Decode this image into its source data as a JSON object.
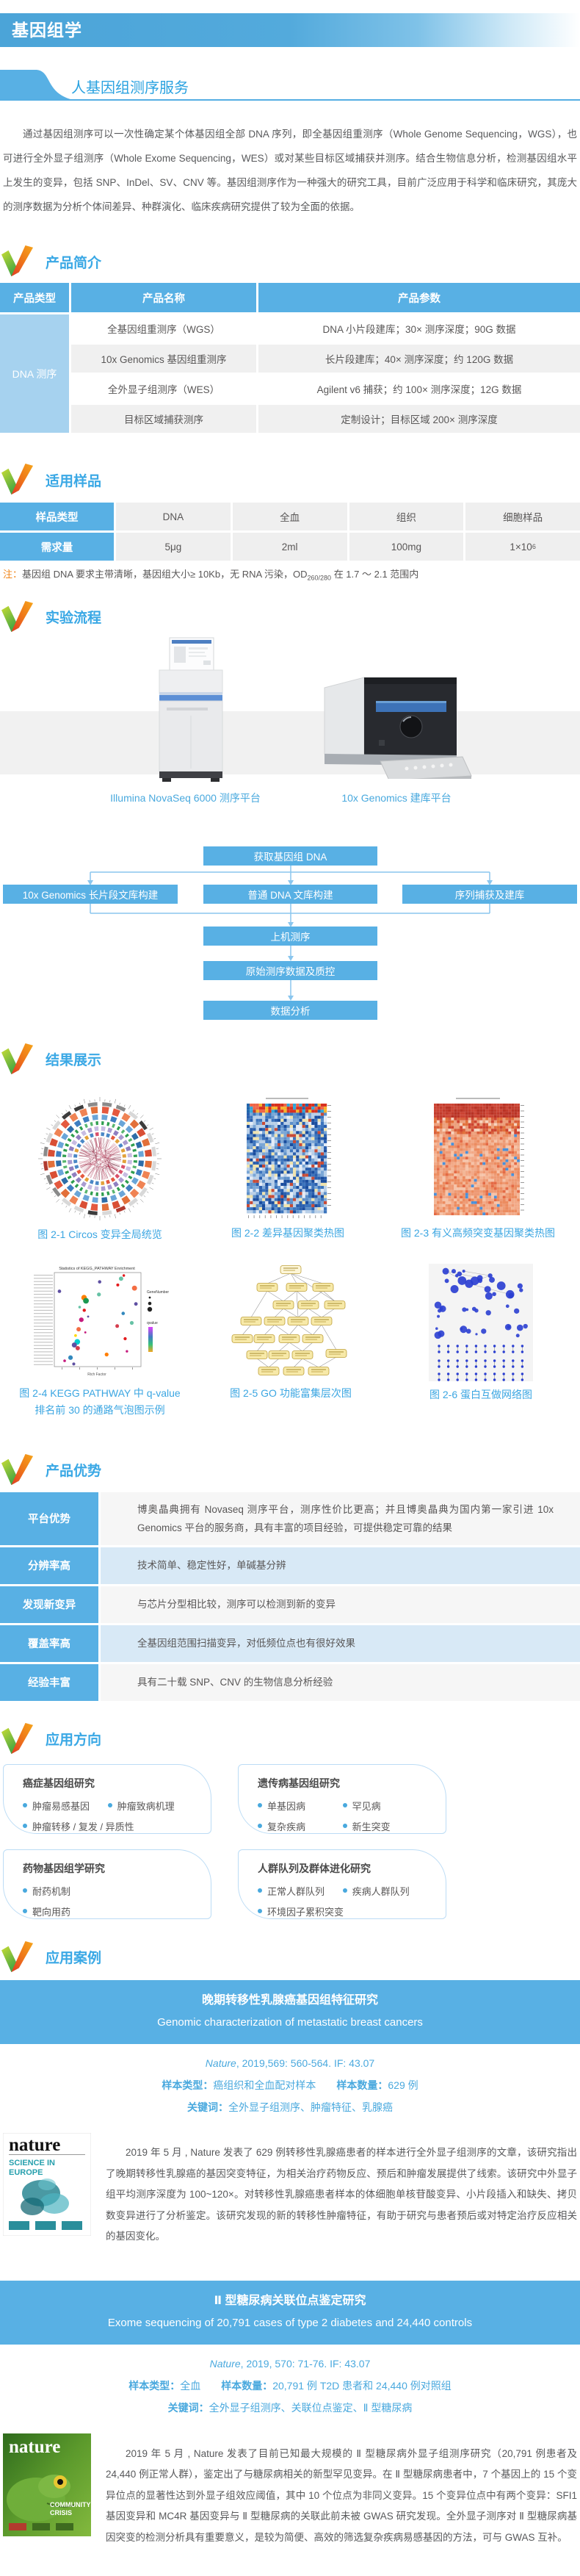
{
  "page": {
    "banner_title": "基因组学",
    "service_title": "人基因组测序服务",
    "intro": "通过基因组测序可以一次性确定某个体基因组全部 DNA 序列，即全基因组重测序（Whole Genome Sequencing，WGS），也可进行全外显子组测序（Whole Exome Sequencing，WES）或对某些目标区域捕获并测序。结合生物信息分析，检测基因组水平上发生的变异，包括 SNP、InDel、SV、CNV 等。基因组测序作为一种强大的研究工具，目前广泛应用于科学和临床研究，其庞大的测序数据为分析个体间差异、种群演化、临床疾病研究提供了较为全面的依据。"
  },
  "headings": {
    "product_intro": "产品简介",
    "samples": "适用样品",
    "workflow": "实验流程",
    "results": "结果展示",
    "advantages": "产品优势",
    "applications": "应用方向",
    "cases": "应用案例"
  },
  "product_table": {
    "headers": [
      "产品类型",
      "产品名称",
      "产品参数"
    ],
    "group": "DNA 测序",
    "rows": [
      {
        "name": "全基因组重测序（WGS）",
        "params": "DNA 小片段建库；30× 测序深度；90G 数据"
      },
      {
        "name": "10x Genomics 基因组重测序",
        "params": "长片段建库；40× 测序深度；约 120G 数据"
      },
      {
        "name": "全外显子组测序（WES）",
        "params": "Agilent v6 捕获；约 100× 测序深度；12G 数据"
      },
      {
        "name": "目标区域捕获测序",
        "params": "定制设计；目标区域 200× 测序深度"
      }
    ]
  },
  "sample_table": {
    "row1": [
      "样品类型",
      "DNA",
      "全血",
      "组织",
      "细胞样品"
    ],
    "row2_label": "需求量",
    "row2": [
      "5μg",
      "2ml",
      "100mg"
    ],
    "row2_last_base": "1×10",
    "row2_last_sup": "6",
    "note_label": "注：",
    "note_pre": "基因组 DNA 要求主带清晰，基因组大小≥ 10Kb，无 RNA 污染，OD",
    "note_sub": "260/280",
    "note_post": " 在 1.7 ～ 2.1 范围内"
  },
  "workflow": {
    "machine1_caption": "Illumina NovaSeq 6000 测序平台",
    "machine2_caption": "10x Genomics 建库平台",
    "nodes": {
      "top": "获取基因组 DNA",
      "left": "10x Genomics 长片段文库构建",
      "mid": "普通 DNA 文库构建",
      "right": "序列捕获及建库",
      "seq": "上机测序",
      "qc": "原始测序数据及质控",
      "analysis": "数据分析"
    }
  },
  "results": {
    "cap1": "图 2-1 Circos 变异全局统览",
    "cap2": "图 2-2 差异基因聚类热图",
    "cap3": "图 2-3 有义高频突变基因聚类热图",
    "cap4_line1": "图 2-4 KEGG PATHWAY 中 q-value",
    "cap4_line2": "排名前 30 的通路气泡图示例",
    "cap5": "图 2-5 GO 功能富集层次图",
    "cap6": "图 2-6 蛋白互做网络图",
    "fig4": {
      "title": "Statistics of KEGG_PATHWAY Enrichment",
      "xlabel": "Rich Factor",
      "legend_size": "GeneNumber",
      "legend_color": "qvalue"
    }
  },
  "advantages": {
    "rows": [
      {
        "label": "平台优势",
        "text": "博奥晶典拥有 Novaseq 测序平台，测序性价比更高；并且博奥晶典为国内第一家引进 10x Genomics 平台的服务商，具有丰富的项目经验，可提供稳定可靠的结果"
      },
      {
        "label": "分辨率高",
        "text": "技术简单、稳定性好，单碱基分辨"
      },
      {
        "label": "发现新变异",
        "text": "与芯片分型相比较，测序可以检测到新的变异"
      },
      {
        "label": "覆盖率高",
        "text": "全基因组范围扫描变异，对低频位点也有很好效果"
      },
      {
        "label": "经验丰富",
        "text": "具有二十载 SNP、CNV 的生物信息分析经验"
      }
    ]
  },
  "applications": {
    "cards": [
      {
        "title": "癌症基因组研究",
        "bullets": [
          "肿瘤易感基因",
          "肿瘤致病机理",
          "肿瘤转移 / 复发 / 异质性"
        ]
      },
      {
        "title": "遗传病基因组研究",
        "bullets": [
          "单基因病",
          "罕见病",
          "复杂疾病",
          "新生突变"
        ]
      },
      {
        "title": "药物基因组学研究",
        "bullets": [
          "耐药机制",
          "靶向用药"
        ]
      },
      {
        "title": "人群队列及群体进化研究",
        "bullets": [
          "正常人群队列",
          "疾病人群队列",
          "环境因子累积突变"
        ]
      }
    ]
  },
  "cases": {
    "case1": {
      "title_cn": "晚期转移性乳腺癌基因组特征研究",
      "title_en": "Genomic characterization of metastatic breast cancers",
      "journal": "Nature",
      "citation": ", 2019,569: 560-564. IF: 43.07",
      "sample_type_label": "样本类型：",
      "sample_type": "癌组织和全血配对样本",
      "sample_count_label": "样本数量：",
      "sample_count": "629 例",
      "keywords_label": "关键词：",
      "keywords": "全外显子组测序、肿瘤特征、乳腺癌",
      "body": "2019 年 5 月 , Nature 发表了 629 例转移性乳腺癌患者的样本进行全外显子组测序的文章，该研究指出了晚期转移性乳腺癌的基因突变特征，为相关治疗药物反应、预后和肿瘤发展提供了线索。该研究中外显子组平均测序深度为 100~120×。对转移性乳腺癌患者样本的体细胞单核苷酸变异、小片段插入和缺失、拷贝数变异进行了分析鉴定。该研究发现的新的转移性肿瘤特征，有助于研究与患者预后或对特定治疗反应相关的基因变化。",
      "cover": {
        "masthead": "nature",
        "sub1": "SCIENCE IN",
        "sub2": "EUROPE"
      }
    },
    "case2": {
      "title_cn": "Ⅱ 型糖尿病关联位点鉴定研究",
      "title_en": "Exome sequencing of 20,791 cases of type 2 diabetes and 24,440 controls",
      "journal": "Nature",
      "citation": ", 2019, 570: 71-76. IF: 43.07",
      "sample_type_label": "样本类型：",
      "sample_type": "全血",
      "sample_count_label": "样本数量：",
      "sample_count": "20,791 例 T2D 患者和 24,440 例对照组",
      "keywords_label": "关键词：",
      "keywords": "全外显子组测序、关联位点鉴定、Ⅱ 型糖尿病",
      "body": "2019 年 5 月 , Nature 发表了目前已知最大规模的 Ⅱ 型糖尿病外显子组测序研究（20,791 例患者及 24,440 例正常人群），鉴定出了与糖尿病相关的新型罕见变异。在 Ⅱ 型糖尿病患者中，7 个基因上的 15 个变异位点的显著性达到外显子组效应阈值，其中 10 个位点为非同义变异。15 个变异位点中有两个变异：SFI1 基因变异和 MC4R 基因变异与 Ⅱ 型糖尿病的关联此前未被 GWAS 研究发现。全外显子测序对 Ⅱ 型糖尿病基因突变的检测分析具有重要意义，是较为简便、高效的筛选复杂疾病易感基因的方法，可与 GWAS 互补。",
      "cover": {
        "masthead": "nature",
        "sub1": "COMMUNITY",
        "sub2": "CRISIS"
      }
    }
  },
  "colors": {
    "accent_blue": "#58b0e4",
    "light_blue_cell": "#a6d2ef",
    "heading_blue": "#3aa8e5",
    "note_orange": "#f08519",
    "row_gray": "#f0f0f0",
    "row_light_blue": "#d8e9f6"
  }
}
